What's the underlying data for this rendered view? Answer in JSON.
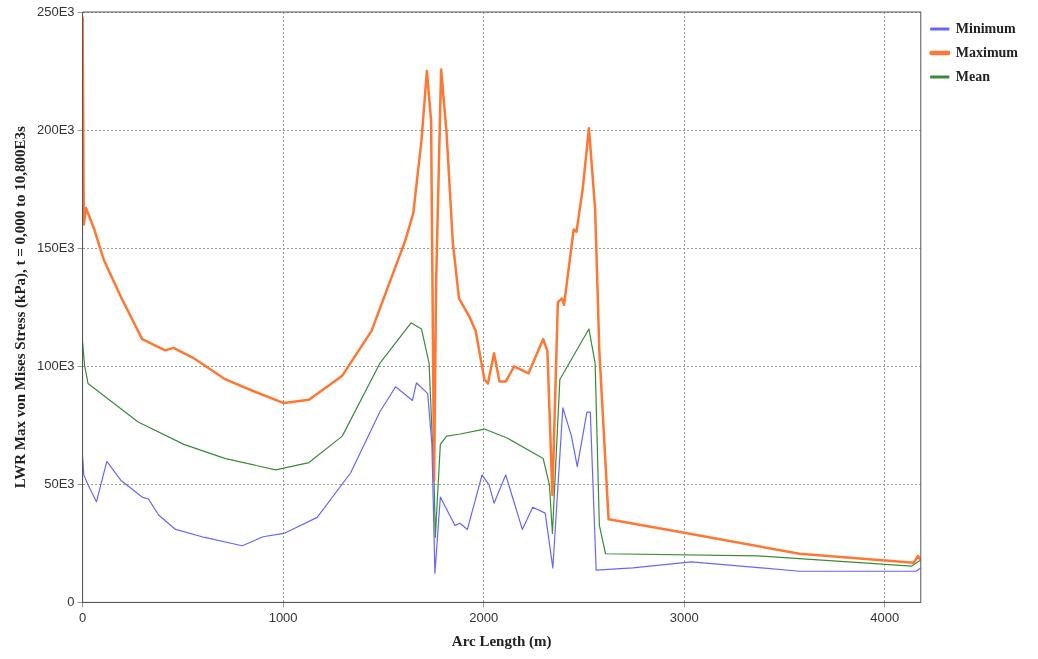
{
  "chart_data": {
    "type": "line",
    "xlabel": "Arc Length (m)",
    "ylabel": "LWR Max von Mises Stress (kPa), t = 0,000 to 10,800E3s",
    "xlim": [
      0,
      4180
    ],
    "xticks": [
      0,
      1000,
      2000,
      3000,
      4000
    ],
    "ylim": [
      0,
      250000
    ],
    "yticks": [
      0,
      {
        "value": 50000,
        "label": "50E3"
      },
      {
        "value": 100000,
        "label": "100E3"
      },
      {
        "value": 150000,
        "label": "150E3"
      },
      {
        "value": 200000,
        "label": "200E3"
      },
      {
        "value": 250000,
        "label": "250E3"
      }
    ],
    "grid": true,
    "legend": "top right",
    "marker": "none",
    "line_style": "solid",
    "series": [
      {
        "name": "Minimum",
        "color": "#6666ff",
        "x": [
          0,
          6,
          27,
          69,
          121,
          193,
          297,
          328,
          380,
          464,
          609,
          796,
          900,
          1004,
          1170,
          1337,
          1482,
          1561,
          1645,
          1665,
          1721,
          1742,
          1757,
          1784,
          1857,
          1882,
          1919,
          1992,
          2027,
          2052,
          2110,
          2193,
          2245,
          2307,
          2345,
          2395,
          2438,
          2467,
          2515,
          2532,
          2561,
          2744,
          3035,
          3575,
          4156,
          4180
        ],
        "values": [
          61800,
          54000,
          49800,
          42600,
          59700,
          51500,
          44600,
          43800,
          36900,
          30900,
          27500,
          24000,
          27800,
          29200,
          36000,
          54900,
          80600,
          91300,
          85500,
          93000,
          88400,
          66900,
          12400,
          44600,
          32600,
          33500,
          30900,
          54000,
          49800,
          42000,
          54000,
          30900,
          40300,
          37800,
          14600,
          82400,
          70400,
          57500,
          80600,
          80600,
          13700,
          14600,
          17200,
          13200,
          13200,
          14600
        ]
      },
      {
        "name": "Maximum",
        "color": "#ff7733",
        "x": [
          0,
          6,
          17,
          58,
          106,
          193,
          297,
          412,
          453,
          547,
          713,
          859,
          1004,
          1129,
          1295,
          1441,
          1607,
          1649,
          1690,
          1717,
          1738,
          1753,
          1763,
          1788,
          1815,
          1846,
          1877,
          1929,
          1960,
          2004,
          2021,
          2052,
          2079,
          2110,
          2152,
          2224,
          2297,
          2318,
          2343,
          2370,
          2390,
          2401,
          2449,
          2463,
          2494,
          2525,
          2556,
          2577,
          2623,
          3000,
          3575,
          4145,
          4166,
          4180
        ],
        "values": [
          248000,
          160000,
          167000,
          158000,
          145000,
          129000,
          111500,
          106700,
          107800,
          103800,
          94400,
          89200,
          84400,
          85800,
          96000,
          115000,
          152700,
          164700,
          195600,
          225000,
          204000,
          51500,
          135500,
          225600,
          199000,
          152700,
          128700,
          121000,
          115000,
          94400,
          92700,
          105500,
          93500,
          93500,
          99900,
          97000,
          111500,
          106400,
          45500,
          127000,
          128700,
          126000,
          157900,
          157000,
          175000,
          200800,
          166500,
          106400,
          35200,
          29500,
          20600,
          16800,
          19700,
          18000
        ]
      },
      {
        "name": "Mean",
        "color": "#3a8a3a",
        "x": [
          0,
          10,
          27,
          277,
          505,
          713,
          963,
          1129,
          1295,
          1482,
          1638,
          1690,
          1728,
          1753,
          1759,
          1784,
          1815,
          1877,
          2004,
          2120,
          2297,
          2328,
          2343,
          2380,
          2525,
          2556,
          2577,
          2608,
          3367,
          4135,
          4180
        ],
        "values": [
          110000,
          100400,
          92700,
          76400,
          66900,
          60900,
          56100,
          59200,
          70400,
          101200,
          118400,
          115800,
          101200,
          51500,
          27500,
          66900,
          70400,
          71200,
          73400,
          69500,
          60900,
          49800,
          29200,
          94400,
          115800,
          101200,
          32600,
          20600,
          19700,
          15400,
          18000
        ]
      }
    ]
  }
}
